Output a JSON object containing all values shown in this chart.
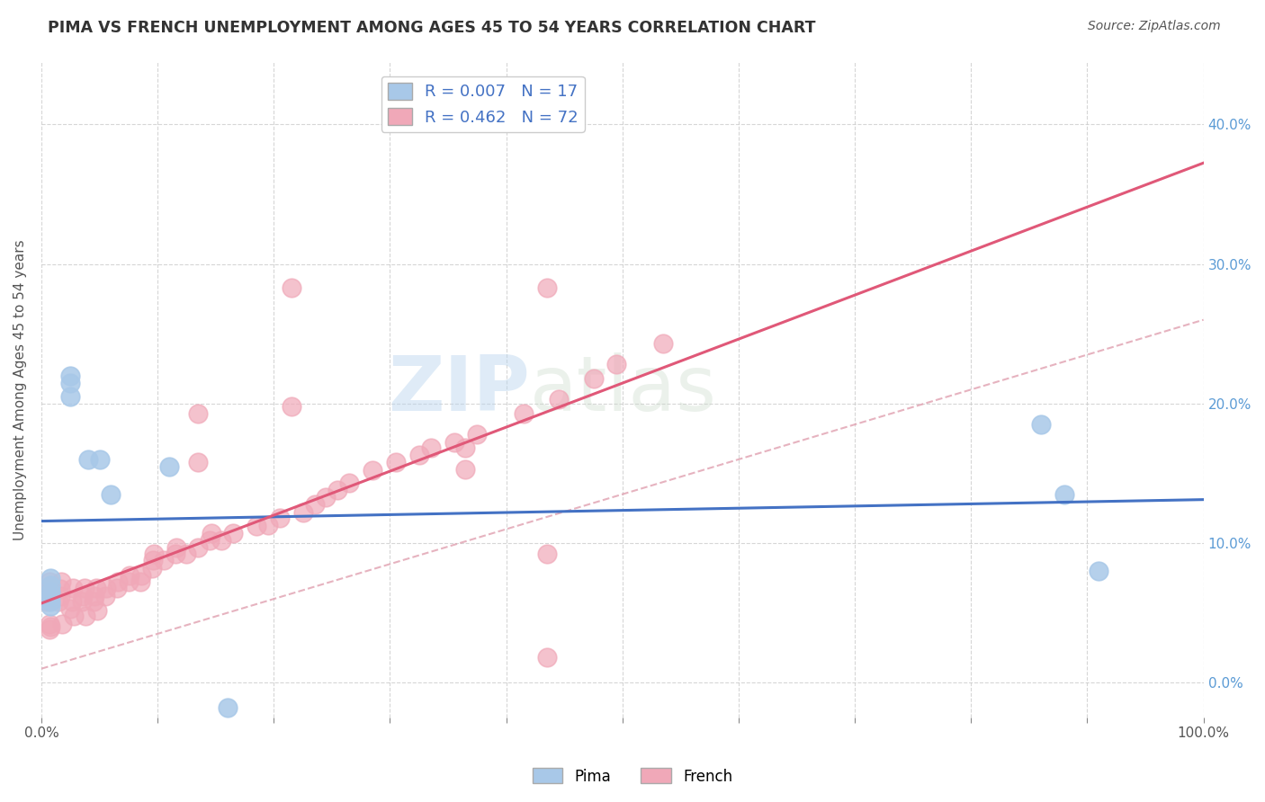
{
  "title": "PIMA VS FRENCH UNEMPLOYMENT AMONG AGES 45 TO 54 YEARS CORRELATION CHART",
  "source_text": "Source: ZipAtlas.com",
  "ylabel": "Unemployment Among Ages 45 to 54 years",
  "xlim": [
    0.0,
    1.0
  ],
  "ylim": [
    -0.025,
    0.445
  ],
  "yticks": [
    0.0,
    0.1,
    0.2,
    0.3,
    0.4
  ],
  "ytick_labels": [
    "0.0%",
    "10.0%",
    "20.0%",
    "30.0%",
    "40.0%"
  ],
  "xticks": [
    0.0,
    0.1,
    0.2,
    0.3,
    0.4,
    0.5,
    0.6,
    0.7,
    0.8,
    0.9,
    1.0
  ],
  "xtick_labels": [
    "0.0%",
    "",
    "",
    "",
    "",
    "",
    "",
    "",
    "",
    "",
    "100.0%"
  ],
  "legend_pima_R": "0.007",
  "legend_pima_N": "17",
  "legend_french_R": "0.462",
  "legend_french_N": "72",
  "pima_color": "#a8c8e8",
  "french_color": "#f0a8b8",
  "pima_line_color": "#4472c4",
  "french_line_color": "#e05878",
  "french_dashed_color": "#e0a0b0",
  "background_color": "#ffffff",
  "grid_color": "#cccccc",
  "pima_x": [
    0.008,
    0.008,
    0.008,
    0.008,
    0.008,
    0.008,
    0.025,
    0.025,
    0.025,
    0.04,
    0.05,
    0.06,
    0.11,
    0.86,
    0.88,
    0.91,
    0.16
  ],
  "pima_y": [
    0.065,
    0.058,
    0.055,
    0.062,
    0.07,
    0.075,
    0.22,
    0.215,
    0.205,
    0.16,
    0.16,
    0.135,
    0.155,
    0.185,
    0.135,
    0.08,
    -0.018
  ],
  "french_x": [
    0.005,
    0.005,
    0.006,
    0.007,
    0.007,
    0.007,
    0.008,
    0.015,
    0.016,
    0.016,
    0.017,
    0.018,
    0.025,
    0.026,
    0.027,
    0.028,
    0.035,
    0.036,
    0.037,
    0.038,
    0.045,
    0.046,
    0.047,
    0.048,
    0.055,
    0.056,
    0.065,
    0.066,
    0.075,
    0.076,
    0.085,
    0.086,
    0.095,
    0.096,
    0.097,
    0.105,
    0.115,
    0.116,
    0.125,
    0.135,
    0.145,
    0.146,
    0.155,
    0.165,
    0.185,
    0.195,
    0.205,
    0.225,
    0.235,
    0.245,
    0.255,
    0.265,
    0.285,
    0.305,
    0.325,
    0.335,
    0.355,
    0.375,
    0.415,
    0.445,
    0.475,
    0.495,
    0.535,
    0.215,
    0.215,
    0.135,
    0.135,
    0.365,
    0.365,
    0.435,
    0.435,
    0.435
  ],
  "french_y": [
    0.058,
    0.063,
    0.067,
    0.072,
    0.042,
    0.038,
    0.04,
    0.058,
    0.062,
    0.067,
    0.072,
    0.042,
    0.053,
    0.058,
    0.068,
    0.048,
    0.058,
    0.062,
    0.068,
    0.048,
    0.058,
    0.062,
    0.068,
    0.052,
    0.062,
    0.068,
    0.068,
    0.072,
    0.072,
    0.077,
    0.072,
    0.077,
    0.082,
    0.088,
    0.092,
    0.088,
    0.092,
    0.097,
    0.092,
    0.097,
    0.102,
    0.107,
    0.102,
    0.107,
    0.112,
    0.113,
    0.118,
    0.122,
    0.128,
    0.133,
    0.138,
    0.143,
    0.152,
    0.158,
    0.163,
    0.168,
    0.172,
    0.178,
    0.193,
    0.203,
    0.218,
    0.228,
    0.243,
    0.198,
    0.283,
    0.158,
    0.193,
    0.153,
    0.168,
    0.018,
    0.092,
    0.283
  ]
}
